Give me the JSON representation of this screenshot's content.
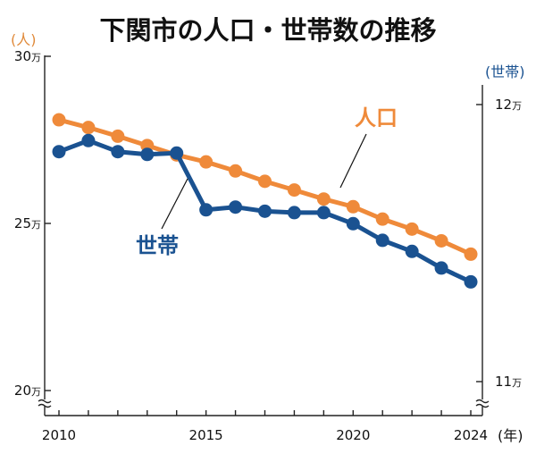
{
  "chart_data": {
    "type": "line",
    "title": "下関市の人口・世帯数の推移",
    "x": [
      2010,
      2011,
      2012,
      2013,
      2014,
      2015,
      2016,
      2017,
      2018,
      2019,
      2020,
      2021,
      2022,
      2023,
      2024
    ],
    "x_ticks": [
      "2010",
      "2015",
      "2020",
      "2024"
    ],
    "x_unit": "(年)",
    "series": [
      {
        "name": "人口",
        "axis": "left",
        "color": "#ef8a3a",
        "values": [
          281000,
          278700,
          276100,
          273300,
          270500,
          268400,
          265700,
          262600,
          260000,
          257300,
          255000,
          251300,
          248300,
          244800,
          240800
        ]
      },
      {
        "name": "世帯",
        "axis": "right",
        "color": "#1a5291",
        "values": [
          118300,
          118700,
          118300,
          118200,
          118250,
          116200,
          116300,
          116150,
          116100,
          116100,
          115700,
          115100,
          114700,
          114100,
          113600
        ]
      }
    ],
    "left_axis": {
      "unit": "(人)",
      "ylim": [
        200000,
        300000
      ],
      "ticks": [
        {
          "value": 300000,
          "label": "30",
          "suffix": "万"
        },
        {
          "value": 250000,
          "label": "25",
          "suffix": "万"
        },
        {
          "value": 200000,
          "label": "20",
          "suffix": "万"
        }
      ]
    },
    "right_axis": {
      "unit": "(世帯)",
      "ylim": [
        100000,
        125000
      ],
      "ticks": [
        {
          "value": 120000,
          "label": "12",
          "suffix": "万"
        },
        {
          "value": 110000,
          "label": "11",
          "suffix": "万"
        }
      ]
    },
    "annotations": [
      {
        "text": "人口",
        "series": "人口"
      },
      {
        "text": "世帯",
        "series": "世帯"
      }
    ],
    "grid": false
  }
}
